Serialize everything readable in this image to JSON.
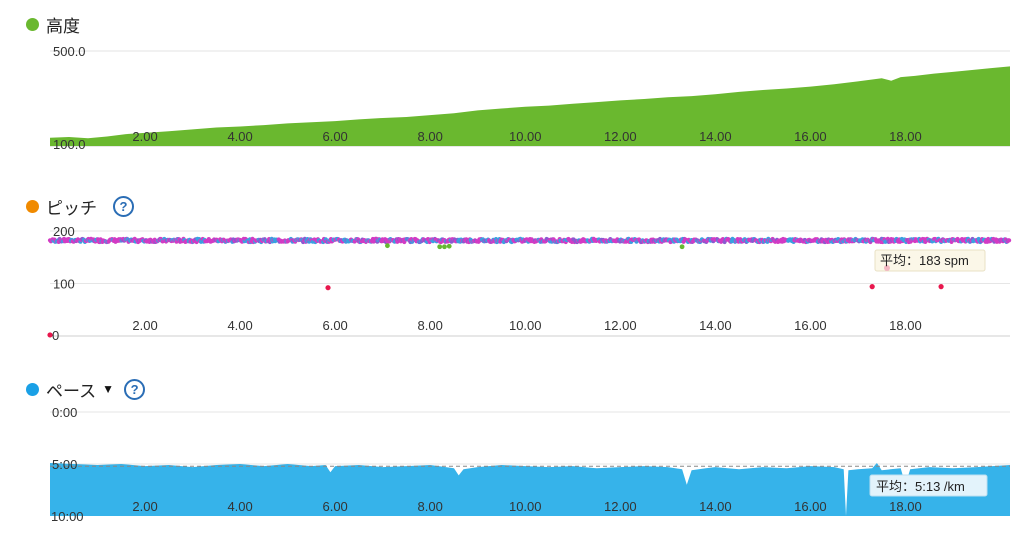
{
  "panels": {
    "altitude": {
      "title": "高度",
      "color": "#6ab82f"
    },
    "cadence": {
      "title": "ピッチ",
      "color": "#f08a00",
      "help": "?",
      "avg_label": "平均：183 spm"
    },
    "pace": {
      "title": "ペース",
      "color": "#1aa0e6",
      "help": "?",
      "dropdown": "▼",
      "avg_label": "平均：5:13 /km"
    }
  },
  "chart_data": [
    {
      "type": "area",
      "id": "altitude",
      "x": [
        0,
        0.4,
        0.8,
        1.2,
        1.6,
        2,
        2.5,
        3,
        3.5,
        4,
        4.5,
        5,
        5.5,
        6,
        6.5,
        7,
        7.5,
        8,
        8.5,
        9,
        9.5,
        10,
        10.5,
        11,
        11.5,
        12,
        12.5,
        13,
        13.5,
        14,
        14.5,
        15,
        15.5,
        16,
        16.5,
        17,
        17.5,
        17.7,
        17.9,
        18.2,
        18.6,
        19,
        19.4,
        19.8,
        20.2
      ],
      "y": [
        135,
        138,
        133,
        140,
        150,
        155,
        162,
        170,
        178,
        182,
        188,
        195,
        200,
        205,
        212,
        218,
        222,
        230,
        238,
        250,
        258,
        265,
        270,
        278,
        285,
        292,
        298,
        305,
        310,
        318,
        328,
        336,
        342,
        350,
        360,
        372,
        385,
        375,
        390,
        395,
        405,
        412,
        420,
        428,
        435
      ],
      "ylim": [
        100,
        500
      ],
      "xlim": [
        0,
        20.2
      ],
      "yticks": [
        "500.0",
        "100.0"
      ],
      "xticks": [
        "2.00",
        "4.00",
        "6.00",
        "8.00",
        "10.00",
        "12.00",
        "14.00",
        "16.00",
        "18.00"
      ]
    },
    {
      "type": "scatter",
      "id": "cadence",
      "ylim": [
        0,
        200
      ],
      "xlim": [
        0,
        20.2
      ],
      "yticks": [
        "200",
        "100",
        "0"
      ],
      "xticks": [
        "2.00",
        "4.00",
        "6.00",
        "8.00",
        "10.00",
        "12.00",
        "14.00",
        "16.00",
        "18.00"
      ],
      "avg": 183,
      "band_center": 182,
      "outliers": [
        {
          "x": 0,
          "y": 2
        },
        {
          "x": 5.85,
          "y": 92
        },
        {
          "x": 17.3,
          "y": 94
        },
        {
          "x": 18.75,
          "y": 94
        }
      ],
      "low_green": [
        {
          "x": 7.1,
          "y": 172
        },
        {
          "x": 8.2,
          "y": 170
        },
        {
          "x": 8.3,
          "y": 170
        },
        {
          "x": 8.4,
          "y": 171
        },
        {
          "x": 13.3,
          "y": 170
        }
      ],
      "colors": [
        "#d23bc4",
        "#3aa0e0",
        "#8a5ad0",
        "#66b832",
        "#e8174d"
      ]
    },
    {
      "type": "area",
      "id": "pace",
      "ylim": [
        0,
        10
      ],
      "inverted": true,
      "xlim": [
        0,
        20.2
      ],
      "yticks": [
        "0:00",
        "5:00",
        "10:00"
      ],
      "xticks": [
        "2.00",
        "4.00",
        "6.00",
        "8.00",
        "10.00",
        "12.00",
        "14.00",
        "16.00",
        "18.00"
      ],
      "avg": 5.22,
      "x": [
        0,
        0.5,
        1,
        1.5,
        2,
        2.5,
        3,
        3.5,
        4,
        4.5,
        5,
        5.5,
        5.8,
        5.9,
        6.0,
        6.5,
        7,
        7.5,
        8,
        8.5,
        8.6,
        8.7,
        9,
        9.5,
        10,
        10.5,
        11,
        11.5,
        12,
        12.5,
        13,
        13.3,
        13.4,
        13.5,
        13.8,
        14,
        14.5,
        15,
        15.5,
        16,
        16.5,
        16.7,
        16.75,
        16.8,
        17,
        17.3,
        17.4,
        17.5,
        17.9,
        18.0,
        18.1,
        18.5,
        19,
        19.5,
        20.2
      ],
      "y": [
        4.9,
        5.0,
        5.1,
        5.0,
        5.2,
        5.1,
        5.3,
        5.1,
        5.0,
        5.2,
        5.0,
        5.2,
        5.1,
        5.8,
        5.2,
        5.1,
        5.3,
        5.2,
        5.1,
        5.4,
        6.1,
        5.5,
        5.3,
        5.1,
        5.2,
        5.3,
        5.2,
        5.4,
        5.3,
        5.2,
        5.3,
        5.5,
        7.0,
        5.6,
        5.4,
        5.3,
        5.5,
        5.3,
        5.4,
        5.2,
        5.3,
        5.5,
        10.0,
        5.6,
        5.5,
        5.4,
        4.9,
        5.6,
        5.4,
        7.0,
        5.5,
        5.3,
        5.4,
        5.3,
        5.1
      ]
    }
  ]
}
